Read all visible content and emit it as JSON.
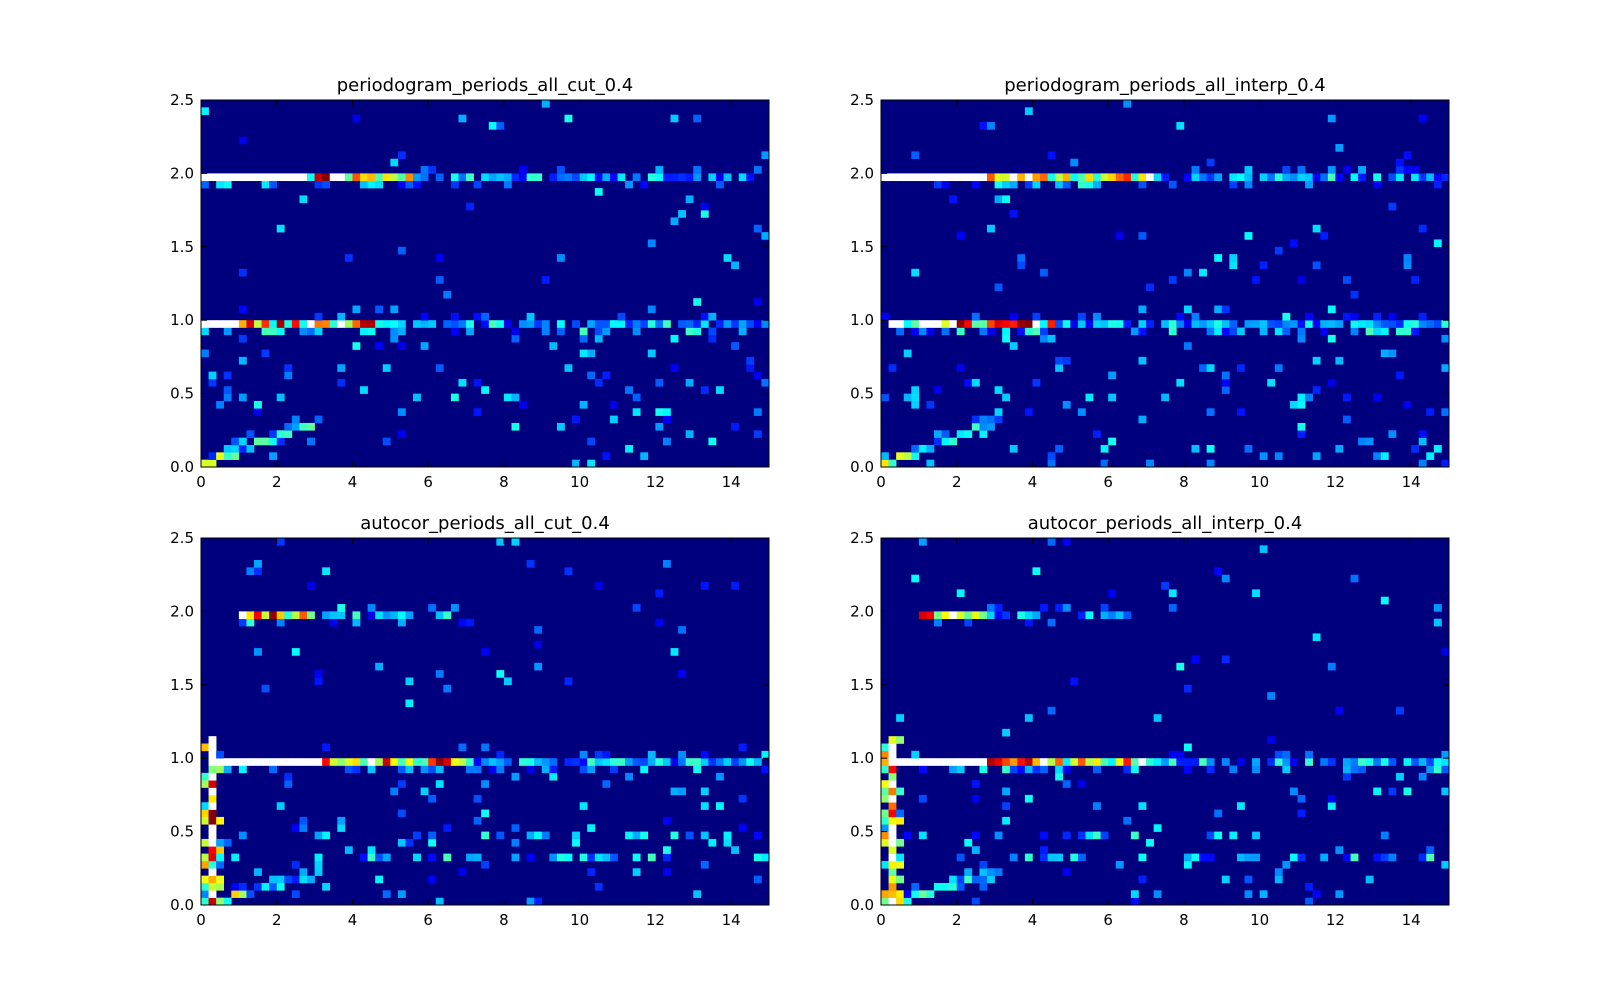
{
  "figure": {
    "background": "#ffffff"
  },
  "colormap": {
    "name": "jet",
    "background": "#00007f",
    "stops": [
      "#00007f",
      "#0000ff",
      "#0080ff",
      "#00ffff",
      "#80ff80",
      "#ffff00",
      "#ff8000",
      "#ff0000",
      "#7f0000"
    ],
    "over": "#ffffff"
  },
  "chart_data": [
    {
      "type": "heatmap",
      "title": "periodogram_periods_all_cut_0.4",
      "xlim": [
        0,
        15
      ],
      "ylim": [
        0,
        2.5
      ],
      "xticks": [
        0,
        2,
        4,
        6,
        8,
        10,
        12,
        14
      ],
      "yticks": [
        0.0,
        0.5,
        1.0,
        1.5,
        2.0,
        2.5
      ],
      "xtick_labels": [
        "0",
        "2",
        "4",
        "6",
        "8",
        "10",
        "12",
        "14"
      ],
      "ytick_labels": [
        "0.0",
        "0.5",
        "1.0",
        "1.5",
        "2.0",
        "2.5"
      ],
      "bins": {
        "x": 75,
        "y": 50
      },
      "bands": [
        {
          "y": 2.0,
          "x_start": 0.1,
          "x_sat_end": 2.7,
          "x_bright_end": 5.5,
          "x_end": 15.0,
          "density": 0.8
        },
        {
          "y": 1.0,
          "x_start": 0.1,
          "x_sat_end": 1.0,
          "x_bright_end": 4.8,
          "x_end": 15.0,
          "density": 0.85
        }
      ],
      "vertical_streak": null,
      "secondary_bands": [
        {
          "y": 0.95,
          "x_start": 1.0,
          "x_end": 15.0,
          "density": 0.25
        },
        {
          "y": 0.5,
          "x_start": 0.4,
          "x_end": 1.0,
          "density": 0.8
        }
      ],
      "low_tail": {
        "x_start": 0.1,
        "x_end": 3.0,
        "y_start": 0.02,
        "y_end": 0.3
      },
      "scatter_density": 0.04,
      "seed": 11
    },
    {
      "type": "heatmap",
      "title": "periodogram_periods_all_interp_0.4",
      "xlim": [
        0,
        15
      ],
      "ylim": [
        0,
        2.5
      ],
      "xticks": [
        0,
        2,
        4,
        6,
        8,
        10,
        12,
        14
      ],
      "yticks": [
        0.0,
        0.5,
        1.0,
        1.5,
        2.0,
        2.5
      ],
      "xtick_labels": [
        "0",
        "2",
        "4",
        "6",
        "8",
        "10",
        "12",
        "14"
      ],
      "ytick_labels": [
        "0.0",
        "0.5",
        "1.0",
        "1.5",
        "2.0",
        "2.5"
      ],
      "bins": {
        "x": 75,
        "y": 50
      },
      "bands": [
        {
          "y": 2.0,
          "x_start": 0.1,
          "x_sat_end": 2.7,
          "x_bright_end": 7.3,
          "x_end": 15.0,
          "density": 0.8
        },
        {
          "y": 1.0,
          "x_start": 0.3,
          "x_sat_end": 0.6,
          "x_bright_end": 4.5,
          "x_end": 15.0,
          "density": 0.85
        }
      ],
      "vertical_streak": null,
      "secondary_bands": [
        {
          "y": 0.95,
          "x_start": 1.0,
          "x_end": 15.0,
          "density": 0.25
        },
        {
          "y": 0.5,
          "x_start": 0.4,
          "x_end": 0.8,
          "density": 0.8
        }
      ],
      "low_tail": {
        "x_start": 0.1,
        "x_end": 3.0,
        "y_start": 0.02,
        "y_end": 0.3
      },
      "scatter_density": 0.04,
      "seed": 23
    },
    {
      "type": "heatmap",
      "title": "autocor_periods_all_cut_0.4",
      "xlim": [
        0,
        15
      ],
      "ylim": [
        0,
        2.5
      ],
      "xticks": [
        0,
        2,
        4,
        6,
        8,
        10,
        12,
        14
      ],
      "yticks": [
        0.0,
        0.5,
        1.0,
        1.5,
        2.0,
        2.5
      ],
      "xtick_labels": [
        "0",
        "2",
        "4",
        "6",
        "8",
        "10",
        "12",
        "14"
      ],
      "ytick_labels": [
        "0.0",
        "0.5",
        "1.0",
        "1.5",
        "2.0",
        "2.5"
      ],
      "bins": {
        "x": 75,
        "y": 50
      },
      "bands": [
        {
          "y": 1.0,
          "x_start": 0.3,
          "x_sat_end": 3.2,
          "x_bright_end": 7.0,
          "x_end": 15.0,
          "density": 0.9
        },
        {
          "y": 2.0,
          "x_start": 1.0,
          "x_sat_end": 1.0,
          "x_bright_end": 3.0,
          "x_end": 7.0,
          "density": 0.7
        }
      ],
      "vertical_streak": {
        "x": 0.35,
        "y_start": 0.0,
        "y_end": 1.15
      },
      "secondary_bands": [
        {
          "y": 0.33,
          "x_start": 3.0,
          "x_end": 15.0,
          "density": 0.35
        },
        {
          "y": 0.5,
          "x_start": 0.4,
          "x_end": 15.0,
          "density": 0.2
        },
        {
          "y": 0.95,
          "x_start": 1.0,
          "x_end": 15.0,
          "density": 0.2
        }
      ],
      "low_tail": {
        "x_start": 0.3,
        "x_end": 3.0,
        "y_start": 0.02,
        "y_end": 0.2
      },
      "scatter_density": 0.035,
      "seed": 37
    },
    {
      "type": "heatmap",
      "title": "autocor_periods_all_interp_0.4",
      "xlim": [
        0,
        15
      ],
      "ylim": [
        0,
        2.5
      ],
      "xticks": [
        0,
        2,
        4,
        6,
        8,
        10,
        12,
        14
      ],
      "yticks": [
        0.0,
        0.5,
        1.0,
        1.5,
        2.0,
        2.5
      ],
      "xtick_labels": [
        "0",
        "2",
        "4",
        "6",
        "8",
        "10",
        "12",
        "14"
      ],
      "ytick_labels": [
        "0.0",
        "0.5",
        "1.0",
        "1.5",
        "2.0",
        "2.5"
      ],
      "bins": {
        "x": 75,
        "y": 50
      },
      "bands": [
        {
          "y": 1.0,
          "x_start": 0.4,
          "x_sat_end": 2.8,
          "x_bright_end": 7.0,
          "x_end": 15.0,
          "density": 0.9
        },
        {
          "y": 2.0,
          "x_start": 1.0,
          "x_sat_end": 1.0,
          "x_bright_end": 2.8,
          "x_end": 6.5,
          "density": 0.7
        }
      ],
      "vertical_streak": {
        "x": 0.35,
        "y_start": 0.0,
        "y_end": 1.15
      },
      "secondary_bands": [
        {
          "y": 0.33,
          "x_start": 3.0,
          "x_end": 15.0,
          "density": 0.35
        },
        {
          "y": 0.5,
          "x_start": 0.4,
          "x_end": 15.0,
          "density": 0.2
        },
        {
          "y": 0.95,
          "x_start": 1.0,
          "x_end": 15.0,
          "density": 0.2
        }
      ],
      "low_tail": {
        "x_start": 0.3,
        "x_end": 3.0,
        "y_start": 0.02,
        "y_end": 0.2
      },
      "scatter_density": 0.035,
      "seed": 51
    }
  ]
}
